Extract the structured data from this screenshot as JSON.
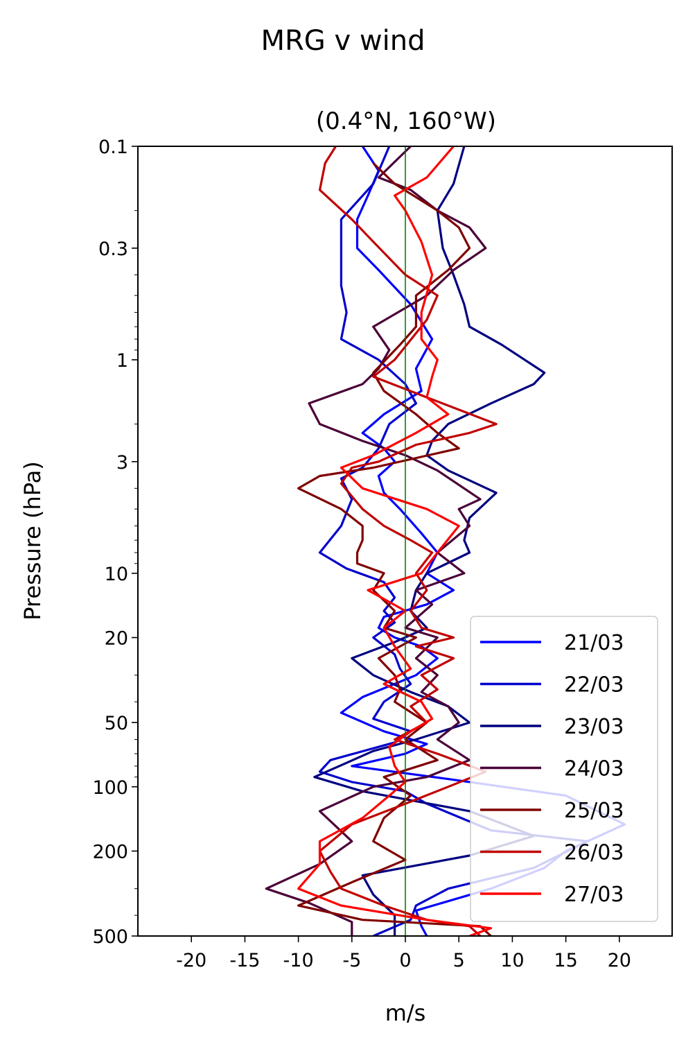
{
  "chart_data": {
    "type": "line",
    "title": "MRG v wind",
    "subtitle": "(0.4°N, 160°W)",
    "xlabel": "m/s",
    "ylabel": "Pressure (hPa)",
    "xlim": [
      -25,
      25
    ],
    "ylim": [
      500,
      0.1
    ],
    "yscale": "log",
    "xticks": [
      -20,
      -15,
      -10,
      -5,
      0,
      5,
      10,
      15,
      20
    ],
    "xtick_labels": [
      "-20",
      "-15",
      "-10",
      "-5",
      "0",
      "5",
      "10",
      "15",
      "20"
    ],
    "yticks": [
      0.1,
      0.3,
      1,
      3,
      10,
      20,
      50,
      100,
      200,
      500
    ],
    "ytick_labels": [
      "0.1",
      "0.3",
      "1",
      "3",
      "10",
      "20",
      "50",
      "100",
      "200",
      "500"
    ],
    "grid": false,
    "legend_position": "lower-right",
    "zero_line_color": "#008000",
    "series": [
      {
        "name": "21/03",
        "color": "#0000ff",
        "points": [
          [
            -4.0,
            0.1
          ],
          [
            -2.5,
            0.13
          ],
          [
            -3.5,
            0.17
          ],
          [
            -4.5,
            0.22
          ],
          [
            -4.5,
            0.3
          ],
          [
            -2.5,
            0.38
          ],
          [
            0.5,
            0.55
          ],
          [
            2.5,
            0.8
          ],
          [
            1.0,
            1.1
          ],
          [
            1.5,
            1.4
          ],
          [
            -2.0,
            1.8
          ],
          [
            -4.0,
            2.2
          ],
          [
            -2.0,
            2.6
          ],
          [
            -1.0,
            3.0
          ],
          [
            -2.5,
            3.5
          ],
          [
            -2.0,
            4.2
          ],
          [
            -0.5,
            5.0
          ],
          [
            1.5,
            6.5
          ],
          [
            3.0,
            8.0
          ],
          [
            2.0,
            10.0
          ],
          [
            4.5,
            12.0
          ],
          [
            2.0,
            14.0
          ],
          [
            -2.0,
            16.0
          ],
          [
            -2.5,
            18.0
          ],
          [
            -1.0,
            20.0
          ],
          [
            1.5,
            22.0
          ],
          [
            3.0,
            25.0
          ],
          [
            1.0,
            30.0
          ],
          [
            -4.0,
            38.0
          ],
          [
            -6.0,
            45.0
          ],
          [
            -2.0,
            55.0
          ],
          [
            2.0,
            63.0
          ],
          [
            0.0,
            70.0
          ],
          [
            -5.0,
            80.0
          ],
          [
            4.0,
            92.0
          ],
          [
            15.0,
            110.0
          ],
          [
            20.5,
            150.0
          ],
          [
            15.0,
            200.0
          ],
          [
            13.0,
            240.0
          ],
          [
            8.0,
            300.0
          ],
          [
            1.0,
            380.0
          ],
          [
            1.5,
            450.0
          ],
          [
            2.0,
            500.0
          ]
        ]
      },
      {
        "name": "22/03",
        "color": "#0000cd",
        "points": [
          [
            -1.5,
            0.1
          ],
          [
            -3.0,
            0.15
          ],
          [
            -6.0,
            0.22
          ],
          [
            -6.0,
            0.3
          ],
          [
            -6.0,
            0.45
          ],
          [
            -5.5,
            0.6
          ],
          [
            -6.0,
            0.8
          ],
          [
            -2.5,
            1.0
          ],
          [
            0.0,
            1.3
          ],
          [
            1.0,
            1.6
          ],
          [
            -1.5,
            2.0
          ],
          [
            -2.5,
            2.6
          ],
          [
            -4.0,
            3.2
          ],
          [
            -6.0,
            3.6
          ],
          [
            -5.0,
            4.5
          ],
          [
            -6.0,
            6.0
          ],
          [
            -8.0,
            8.0
          ],
          [
            -5.5,
            9.5
          ],
          [
            -2.0,
            11.0
          ],
          [
            -1.0,
            13.0
          ],
          [
            -2.0,
            15.0
          ],
          [
            -1.0,
            17.0
          ],
          [
            -3.0,
            20.0
          ],
          [
            -1.0,
            24.0
          ],
          [
            -0.5,
            28.0
          ],
          [
            0.5,
            33.0
          ],
          [
            -2.0,
            40.0
          ],
          [
            -3.0,
            48.0
          ],
          [
            0.5,
            55.0
          ],
          [
            -1.0,
            62.0
          ],
          [
            -7.0,
            75.0
          ],
          [
            -8.0,
            85.0
          ],
          [
            -5.0,
            95.0
          ],
          [
            0.0,
            105.0
          ],
          [
            2.0,
            120.0
          ],
          [
            8.0,
            160.0
          ],
          [
            17.0,
            180.0
          ],
          [
            12.0,
            240.0
          ],
          [
            4.0,
            300.0
          ],
          [
            1.0,
            360.0
          ],
          [
            0.5,
            420.0
          ],
          [
            -3.0,
            500.0
          ]
        ]
      },
      {
        "name": "23/03",
        "color": "#000080",
        "points": [
          [
            5.5,
            0.1
          ],
          [
            4.5,
            0.15
          ],
          [
            3.0,
            0.2
          ],
          [
            3.5,
            0.3
          ],
          [
            4.5,
            0.4
          ],
          [
            5.5,
            0.55
          ],
          [
            6.0,
            0.7
          ],
          [
            9.0,
            0.85
          ],
          [
            13.0,
            1.15
          ],
          [
            12.0,
            1.3
          ],
          [
            8.0,
            1.6
          ],
          [
            4.0,
            2.0
          ],
          [
            2.5,
            2.4
          ],
          [
            2.0,
            2.8
          ],
          [
            4.0,
            3.3
          ],
          [
            8.5,
            4.2
          ],
          [
            6.0,
            5.5
          ],
          [
            5.5,
            7.0
          ],
          [
            6.0,
            8.0
          ],
          [
            2.0,
            10.0
          ],
          [
            1.0,
            12.0
          ],
          [
            0.5,
            15.0
          ],
          [
            2.0,
            18.0
          ],
          [
            -1.0,
            21.0
          ],
          [
            -5.0,
            25.0
          ],
          [
            -3.0,
            30.0
          ],
          [
            0.5,
            36.0
          ],
          [
            4.0,
            42.0
          ],
          [
            6.0,
            50.0
          ],
          [
            1.0,
            60.0
          ],
          [
            -3.0,
            68.0
          ],
          [
            -8.5,
            90.0
          ],
          [
            -4.0,
            105.0
          ],
          [
            6.0,
            130.0
          ],
          [
            12.0,
            170.0
          ],
          [
            6.0,
            210.0
          ],
          [
            -4.0,
            260.0
          ],
          [
            -3.0,
            320.0
          ],
          [
            -1.0,
            400.0
          ],
          [
            -1.0,
            500.0
          ]
        ]
      },
      {
        "name": "24/03",
        "color": "#4b0038",
        "points": [
          [
            0.5,
            0.1
          ],
          [
            -2.5,
            0.14
          ],
          [
            0.5,
            0.16
          ],
          [
            3.0,
            0.2
          ],
          [
            6.0,
            0.24
          ],
          [
            7.5,
            0.3
          ],
          [
            4.5,
            0.38
          ],
          [
            2.0,
            0.5
          ],
          [
            -3.0,
            0.7
          ],
          [
            -1.5,
            0.9
          ],
          [
            -2.5,
            1.1
          ],
          [
            -4.0,
            1.3
          ],
          [
            -9.0,
            1.6
          ],
          [
            -8.0,
            2.0
          ],
          [
            -4.0,
            2.4
          ],
          [
            0.0,
            2.8
          ],
          [
            3.0,
            3.3
          ],
          [
            7.0,
            4.5
          ],
          [
            5.0,
            5.0
          ],
          [
            6.0,
            6.0
          ],
          [
            3.0,
            8.0
          ],
          [
            5.5,
            10.0
          ],
          [
            1.0,
            12.0
          ],
          [
            2.5,
            14.0
          ],
          [
            0.0,
            18.0
          ],
          [
            3.0,
            20.0
          ],
          [
            1.0,
            25.0
          ],
          [
            3.0,
            30.0
          ],
          [
            1.5,
            36.0
          ],
          [
            4.0,
            42.0
          ],
          [
            5.0,
            50.0
          ],
          [
            3.0,
            60.0
          ],
          [
            6.0,
            75.0
          ],
          [
            2.0,
            90.0
          ],
          [
            -3.0,
            100.0
          ],
          [
            -8.0,
            130.0
          ],
          [
            -5.0,
            180.0
          ],
          [
            -8.0,
            230.0
          ],
          [
            -13.0,
            300.0
          ],
          [
            -9.0,
            350.0
          ],
          [
            -5.0,
            430.0
          ],
          [
            -5.0,
            500.0
          ]
        ]
      },
      {
        "name": "25/03",
        "color": "#800000",
        "points": [
          [
            -3.0,
            0.12
          ],
          [
            -1.0,
            0.15
          ],
          [
            3.0,
            0.2
          ],
          [
            5.0,
            0.24
          ],
          [
            6.0,
            0.3
          ],
          [
            4.0,
            0.38
          ],
          [
            1.0,
            0.5
          ],
          [
            1.0,
            0.7
          ],
          [
            -0.5,
            0.85
          ],
          [
            -3.0,
            1.15
          ],
          [
            -2.0,
            1.4
          ],
          [
            1.0,
            1.8
          ],
          [
            3.0,
            2.2
          ],
          [
            5.0,
            2.6
          ],
          [
            -3.0,
            3.2
          ],
          [
            -8.0,
            3.5
          ],
          [
            -10.0,
            4.0
          ],
          [
            -6.0,
            5.0
          ],
          [
            -4.0,
            6.0
          ],
          [
            -4.0,
            7.0
          ],
          [
            -4.5,
            8.0
          ],
          [
            -4.5,
            9.0
          ],
          [
            -2.0,
            10.0
          ],
          [
            -3.0,
            12.0
          ],
          [
            -1.0,
            15.0
          ],
          [
            -2.0,
            18.0
          ],
          [
            1.0,
            20.0
          ],
          [
            -2.5,
            25.0
          ],
          [
            -1.0,
            30.0
          ],
          [
            -0.5,
            35.0
          ],
          [
            -1.0,
            40.0
          ],
          [
            2.0,
            50.0
          ],
          [
            0.0,
            60.0
          ],
          [
            3.0,
            75.0
          ],
          [
            -2.0,
            90.0
          ],
          [
            0.5,
            110.0
          ],
          [
            -2.0,
            140.0
          ],
          [
            -3.0,
            180.0
          ],
          [
            0.0,
            220.0
          ],
          [
            -5.0,
            280.0
          ],
          [
            -10.0,
            360.0
          ],
          [
            -4.0,
            420.0
          ],
          [
            7.0,
            450.0
          ],
          [
            8.0,
            500.0
          ]
        ]
      },
      {
        "name": "26/03",
        "color": "#c00000",
        "points": [
          [
            -6.5,
            0.1
          ],
          [
            -7.5,
            0.12
          ],
          [
            -8.0,
            0.16
          ],
          [
            -5.0,
            0.22
          ],
          [
            -3.0,
            0.28
          ],
          [
            0.0,
            0.4
          ],
          [
            3.0,
            0.5
          ],
          [
            2.0,
            0.65
          ],
          [
            -1.0,
            1.0
          ],
          [
            -3.0,
            1.2
          ],
          [
            2.0,
            1.5
          ],
          [
            8.5,
            2.0
          ],
          [
            6.0,
            2.2
          ],
          [
            1.0,
            2.5
          ],
          [
            -2.5,
            3.0
          ],
          [
            -5.0,
            3.2
          ],
          [
            -6.0,
            3.8
          ],
          [
            -4.0,
            5.0
          ],
          [
            -2.0,
            6.0
          ],
          [
            0.5,
            7.0
          ],
          [
            2.5,
            8.0
          ],
          [
            1.0,
            10.0
          ],
          [
            2.0,
            12.0
          ],
          [
            0.5,
            15.0
          ],
          [
            1.5,
            18.0
          ],
          [
            4.5,
            20.0
          ],
          [
            1.0,
            22.0
          ],
          [
            4.5,
            25.0
          ],
          [
            1.5,
            30.0
          ],
          [
            3.0,
            35.0
          ],
          [
            0.5,
            42.0
          ],
          [
            2.0,
            50.0
          ],
          [
            -1.0,
            60.0
          ],
          [
            3.0,
            70.0
          ],
          [
            7.5,
            85.0
          ],
          [
            4.0,
            100.0
          ],
          [
            0.0,
            120.0
          ],
          [
            -5.0,
            150.0
          ],
          [
            -8.0,
            200.0
          ],
          [
            -7.0,
            250.0
          ],
          [
            -6.0,
            300.0
          ],
          [
            -2.0,
            360.0
          ],
          [
            2.0,
            420.0
          ],
          [
            6.0,
            450.0
          ],
          [
            7.0,
            500.0
          ]
        ]
      },
      {
        "name": "27/03",
        "color": "#ff0000",
        "points": [
          [
            4.5,
            0.1
          ],
          [
            2.0,
            0.14
          ],
          [
            -1.0,
            0.17
          ],
          [
            0.0,
            0.2
          ],
          [
            1.5,
            0.28
          ],
          [
            2.5,
            0.4
          ],
          [
            1.5,
            0.6
          ],
          [
            1.5,
            0.8
          ],
          [
            3.0,
            1.0
          ],
          [
            2.5,
            1.2
          ],
          [
            2.0,
            1.5
          ],
          [
            4.0,
            1.8
          ],
          [
            1.0,
            2.2
          ],
          [
            -3.0,
            2.8
          ],
          [
            -6.0,
            3.2
          ],
          [
            -4.0,
            4.0
          ],
          [
            2.0,
            5.0
          ],
          [
            5.0,
            6.0
          ],
          [
            3.0,
            8.0
          ],
          [
            1.5,
            10.0
          ],
          [
            -3.5,
            12.0
          ],
          [
            0.0,
            15.0
          ],
          [
            -2.0,
            18.0
          ],
          [
            -1.0,
            22.0
          ],
          [
            0.5,
            28.0
          ],
          [
            -2.0,
            33.0
          ],
          [
            1.5,
            40.0
          ],
          [
            2.5,
            48.0
          ],
          [
            0.5,
            55.0
          ],
          [
            -1.5,
            65.0
          ],
          [
            -1.0,
            80.0
          ],
          [
            0.0,
            95.0
          ],
          [
            -1.5,
            110.0
          ],
          [
            -4.0,
            140.0
          ],
          [
            -8.0,
            180.0
          ],
          [
            -8.0,
            230.0
          ],
          [
            -10.0,
            300.0
          ],
          [
            -6.0,
            360.0
          ],
          [
            2.0,
            420.0
          ],
          [
            8.0,
            460.0
          ],
          [
            6.0,
            500.0
          ]
        ]
      }
    ]
  }
}
